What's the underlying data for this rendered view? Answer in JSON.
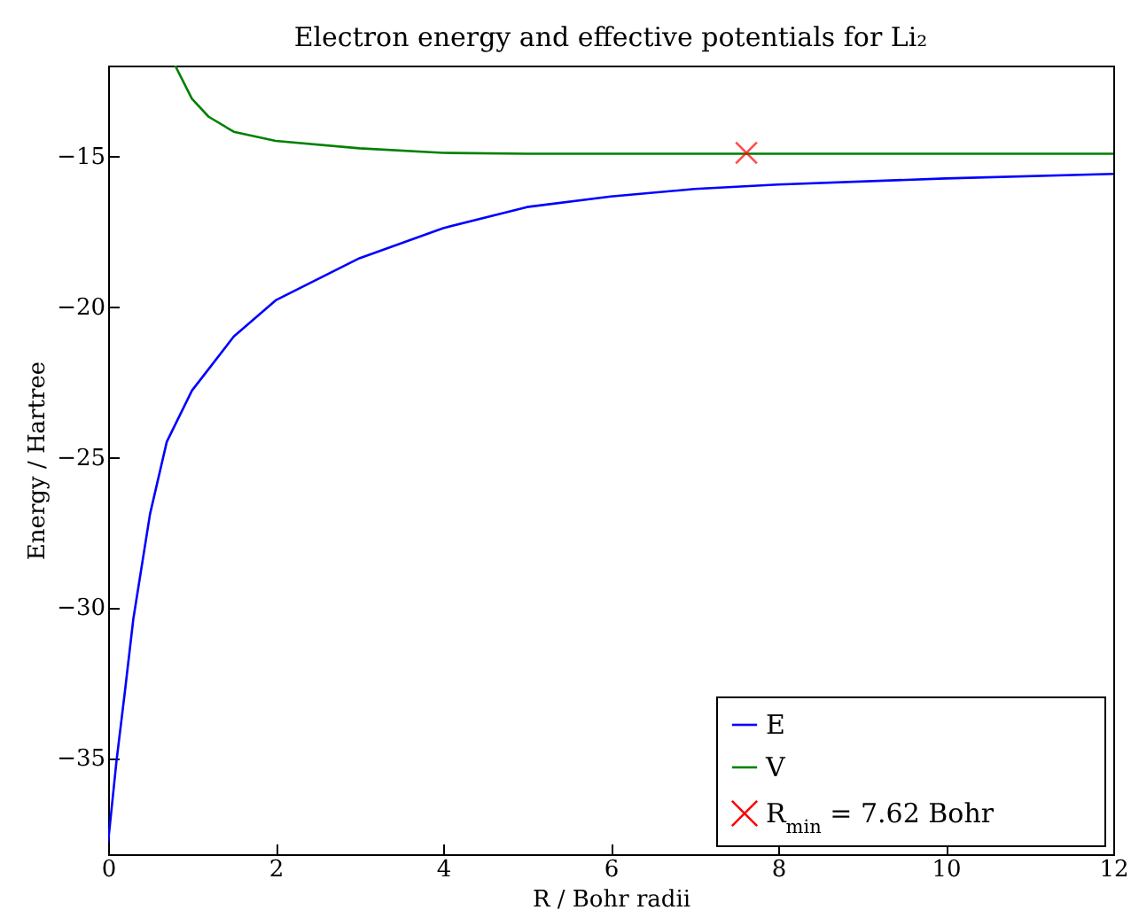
{
  "chart_data": {
    "type": "line",
    "title": "Electron energy and effective potentials for Li₂",
    "xlabel": "R / Bohr radii",
    "ylabel": "Energy / Hartree",
    "xlim": [
      0,
      12
    ],
    "xticks": [
      0,
      2,
      4,
      6,
      8,
      10,
      12
    ],
    "ylim": [
      -38.2,
      -12
    ],
    "yticks": [
      -35,
      -30,
      -25,
      -20,
      -15
    ],
    "grid": false,
    "legend": "bottom right",
    "series": [
      {
        "name": "E",
        "color": "#0000ff",
        "x": [
          0,
          0.1,
          0.2,
          0.3,
          0.5,
          0.7,
          1,
          1.5,
          2,
          3,
          4,
          5,
          6,
          7,
          8,
          10,
          12
        ],
        "values": [
          -37.8,
          -35.1,
          -32.8,
          -30.4,
          -26.9,
          -24.5,
          -22.8,
          -21,
          -19.8,
          -18.4,
          -17.4,
          -16.7,
          -16.35,
          -16.1,
          -15.95,
          -15.75,
          -15.6
        ]
      },
      {
        "name": "V",
        "color": "#008000",
        "x": [
          0.8,
          1,
          1.2,
          1.5,
          2,
          3,
          4,
          5,
          6,
          8,
          10,
          12
        ],
        "values": [
          -12,
          -13.1,
          -13.7,
          -14.2,
          -14.5,
          -14.75,
          -14.9,
          -14.93,
          -14.93,
          -14.93,
          -14.93,
          -14.93
        ]
      },
      {
        "name": "R$_{min}$ = 7.62 Bohr",
        "color": "#ff0000",
        "type": "scatter",
        "marker": "cross",
        "x": [
          7.62
        ],
        "values": [
          -14.9
        ]
      }
    ]
  }
}
